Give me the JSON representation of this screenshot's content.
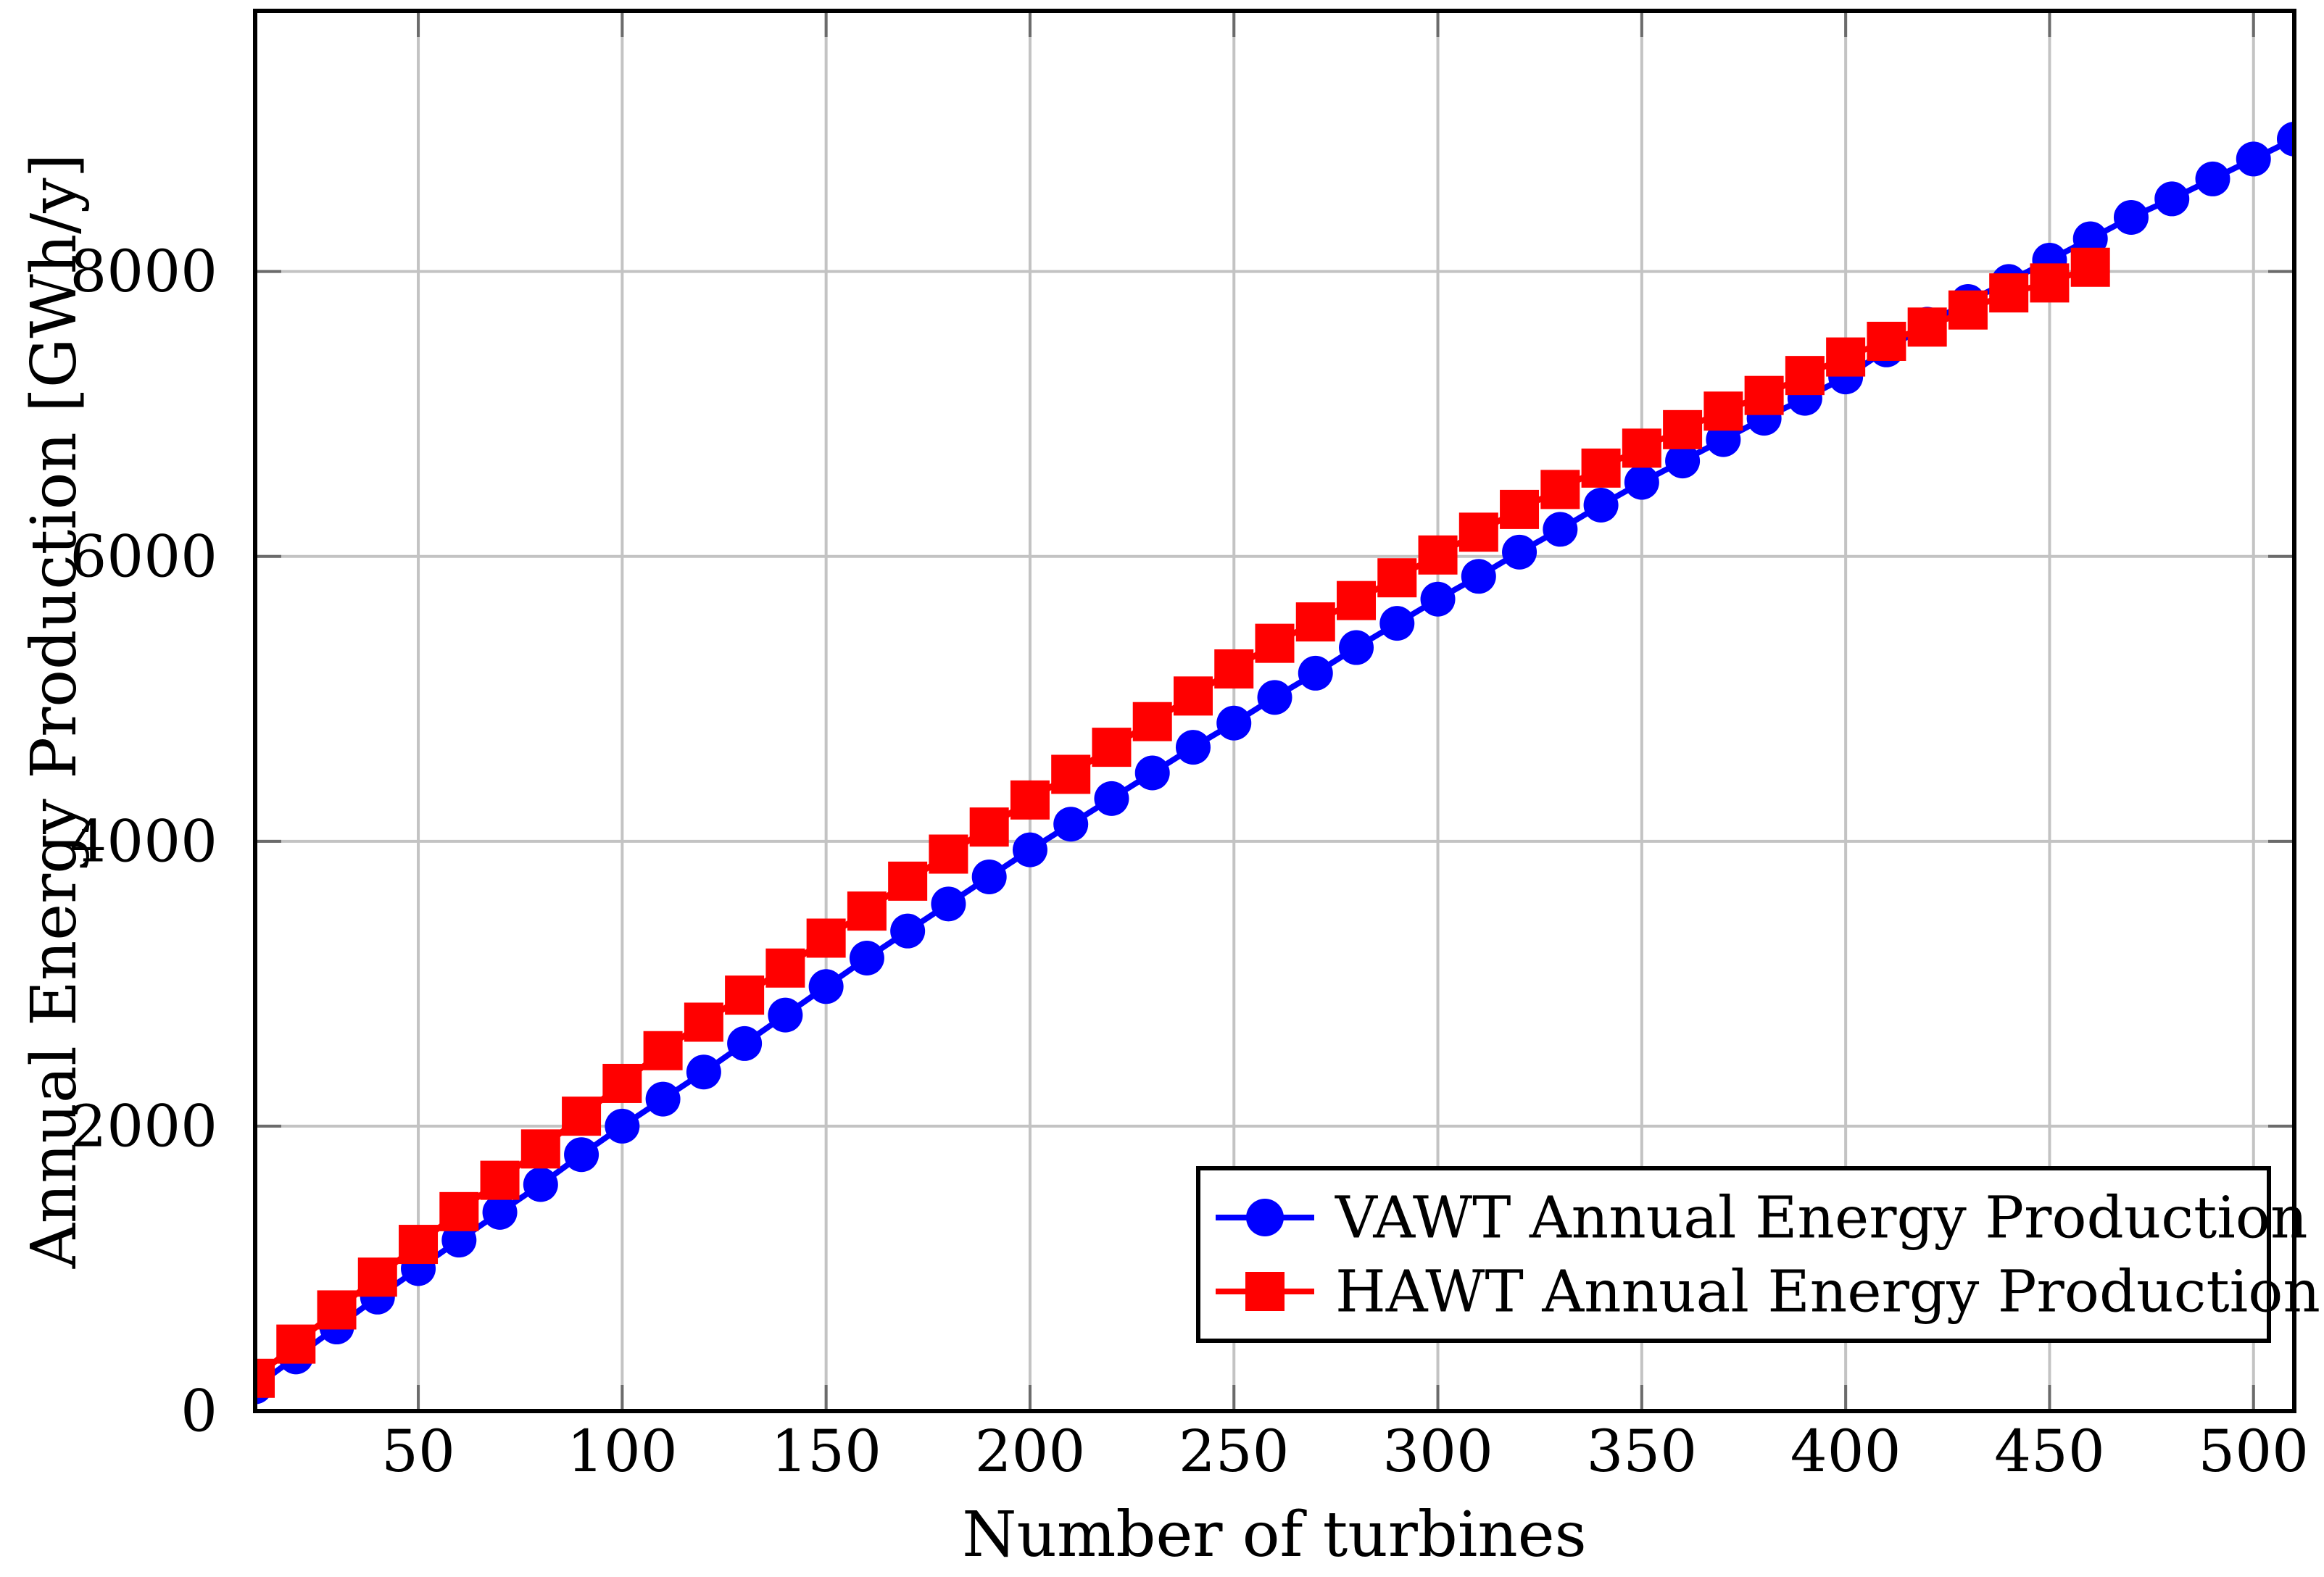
{
  "chart_data": {
    "type": "line",
    "title": "",
    "xlabel": "Number of turbines",
    "ylabel": "Annual Energy Production [GWh/y]",
    "xlim": [
      10,
      510
    ],
    "ylim": [
      0,
      9830
    ],
    "x_ticks": [
      50,
      100,
      150,
      200,
      250,
      300,
      350,
      400,
      450,
      500
    ],
    "y_ticks": [
      0,
      2000,
      4000,
      6000,
      8000
    ],
    "grid": true,
    "legend_position": "lower right",
    "x_start": 10,
    "x_step": 10,
    "series": [
      {
        "name": "VAWT Annual Energy Production",
        "color": "#0000ff",
        "marker": "circle",
        "values": [
          170,
          380,
          590,
          800,
          1000,
          1200,
          1395,
          1590,
          1800,
          2000,
          2190,
          2380,
          2580,
          2780,
          2980,
          3180,
          3370,
          3560,
          3750,
          3940,
          4120,
          4300,
          4480,
          4660,
          4830,
          5010,
          5180,
          5360,
          5530,
          5700,
          5860,
          6030,
          6190,
          6360,
          6520,
          6670,
          6820,
          6970,
          7110,
          7260,
          7450,
          7630,
          7790,
          7930,
          8080,
          8230,
          8380,
          8510,
          8650,
          8790,
          8930
        ]
      },
      {
        "name": "HAWT Annual Energy Production",
        "color": "#ff0000",
        "marker": "square",
        "values": [
          230,
          470,
          710,
          940,
          1170,
          1400,
          1620,
          1840,
          2070,
          2300,
          2530,
          2730,
          2920,
          3110,
          3320,
          3510,
          3720,
          3910,
          4100,
          4290,
          4470,
          4660,
          4840,
          5020,
          5210,
          5390,
          5540,
          5690,
          5850,
          6010,
          6170,
          6330,
          6470,
          6620,
          6760,
          6890,
          7020,
          7130,
          7270,
          7400,
          7510,
          7610,
          7730,
          7850,
          7920,
          8030
        ]
      }
    ]
  }
}
